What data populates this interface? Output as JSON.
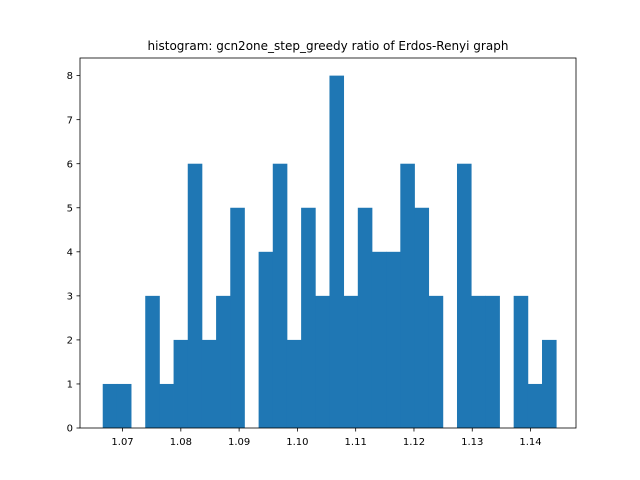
{
  "chart_data": {
    "type": "bar",
    "title": "histogram: gcn2one_step_greedy ratio of Erdos-Renyi graph",
    "xlabel": "",
    "ylabel": "",
    "bar_color": "#1f77b4",
    "grid": false,
    "legend": "none",
    "xlim": [
      1.0627,
      1.1478
    ],
    "ylim": [
      0,
      8.4
    ],
    "x_ticks": [
      {
        "value": 1.07,
        "label": "1.07"
      },
      {
        "value": 1.08,
        "label": "1.08"
      },
      {
        "value": 1.09,
        "label": "1.09"
      },
      {
        "value": 1.1,
        "label": "1.10"
      },
      {
        "value": 1.11,
        "label": "1.11"
      },
      {
        "value": 1.12,
        "label": "1.12"
      },
      {
        "value": 1.13,
        "label": "1.13"
      },
      {
        "value": 1.14,
        "label": "1.14"
      }
    ],
    "y_ticks": [
      {
        "value": 0,
        "label": "0"
      },
      {
        "value": 1,
        "label": "1"
      },
      {
        "value": 2,
        "label": "2"
      },
      {
        "value": 3,
        "label": "3"
      },
      {
        "value": 4,
        "label": "4"
      },
      {
        "value": 5,
        "label": "5"
      },
      {
        "value": 6,
        "label": "6"
      },
      {
        "value": 7,
        "label": "7"
      },
      {
        "value": 8,
        "label": "8"
      }
    ],
    "bin_start": 1.0666,
    "bin_end": 1.1444,
    "bin_counts": [
      1,
      1,
      0,
      3,
      1,
      2,
      6,
      2,
      3,
      5,
      0,
      4,
      6,
      2,
      5,
      3,
      8,
      3,
      5,
      4,
      4,
      6,
      5,
      3,
      0,
      6,
      3,
      3,
      0,
      3,
      1,
      2
    ]
  }
}
